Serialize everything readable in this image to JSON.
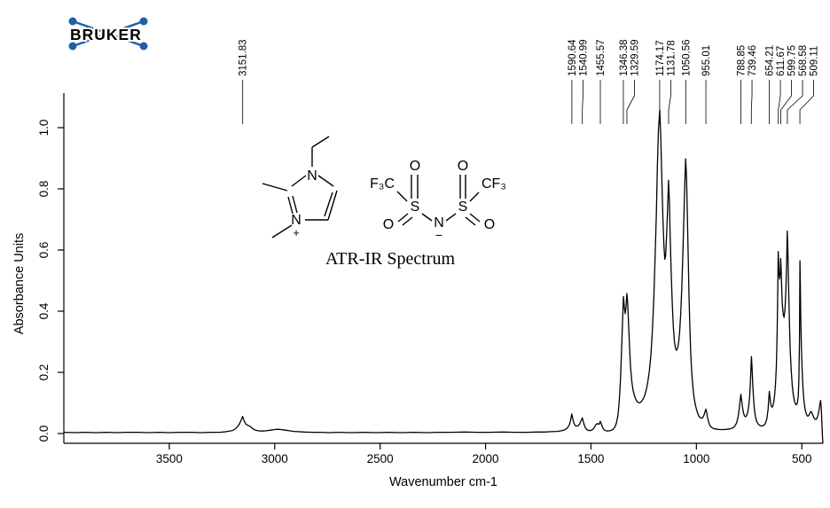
{
  "logo": {
    "text": "BRUKER",
    "color": "#1E5FA8"
  },
  "molecule": {
    "n": "N",
    "plus": "+",
    "s": "S",
    "o": "O",
    "minus": "−",
    "f3c": "F₃C",
    "cf3": "CF₃"
  },
  "chart_data": {
    "type": "line",
    "title": "ATR-IR Spectrum",
    "xlabel": "Wavenumber cm-1",
    "ylabel": "Absorbance Units",
    "x_axis_reversed": true,
    "xlim": [
      4000,
      400
    ],
    "ylim": [
      -0.05,
      1.11
    ],
    "grid": false,
    "line_color": "#000000",
    "x_ticks": [
      3500,
      3000,
      2500,
      2000,
      1500,
      1000,
      500
    ],
    "y_ticks": [
      "0.0",
      "0.2",
      "0.4",
      "0.6",
      "0.8",
      "1.0"
    ],
    "peak_labels": [
      "3151.83",
      "1590.64",
      "1540.99",
      "1455.57",
      "1346.38",
      "1329.59",
      "1174.17",
      "1131.78",
      "1050.56",
      "955.01",
      "788.85",
      "739.46",
      "654.21",
      "611.67",
      "599.75",
      "568.58",
      "509.11"
    ],
    "spectrum_points": [
      [
        4000,
        0.004
      ],
      [
        3950,
        0.003
      ],
      [
        3900,
        0.004
      ],
      [
        3850,
        0.003
      ],
      [
        3800,
        0.004
      ],
      [
        3750,
        0.003
      ],
      [
        3700,
        0.004
      ],
      [
        3650,
        0.004
      ],
      [
        3600,
        0.003
      ],
      [
        3550,
        0.004
      ],
      [
        3500,
        0.003
      ],
      [
        3450,
        0.004
      ],
      [
        3400,
        0.004
      ],
      [
        3350,
        0.003
      ],
      [
        3300,
        0.004
      ],
      [
        3260,
        0.004
      ],
      [
        3230,
        0.006
      ],
      [
        3200,
        0.01
      ],
      [
        3185,
        0.016
      ],
      [
        3170,
        0.028
      ],
      [
        3160,
        0.042
      ],
      [
        3152,
        0.056
      ],
      [
        3144,
        0.04
      ],
      [
        3136,
        0.03
      ],
      [
        3128,
        0.027
      ],
      [
        3118,
        0.024
      ],
      [
        3108,
        0.018
      ],
      [
        3095,
        0.012
      ],
      [
        3080,
        0.009
      ],
      [
        3060,
        0.008
      ],
      [
        3040,
        0.009
      ],
      [
        3020,
        0.011
      ],
      [
        3000,
        0.013
      ],
      [
        2985,
        0.014
      ],
      [
        2970,
        0.013
      ],
      [
        2950,
        0.011
      ],
      [
        2930,
        0.009
      ],
      [
        2910,
        0.007
      ],
      [
        2890,
        0.006
      ],
      [
        2860,
        0.005
      ],
      [
        2820,
        0.004
      ],
      [
        2780,
        0.004
      ],
      [
        2740,
        0.003
      ],
      [
        2700,
        0.004
      ],
      [
        2640,
        0.003
      ],
      [
        2580,
        0.004
      ],
      [
        2520,
        0.003
      ],
      [
        2460,
        0.004
      ],
      [
        2400,
        0.003
      ],
      [
        2340,
        0.004
      ],
      [
        2280,
        0.003
      ],
      [
        2220,
        0.004
      ],
      [
        2160,
        0.004
      ],
      [
        2100,
        0.005
      ],
      [
        2040,
        0.004
      ],
      [
        1980,
        0.004
      ],
      [
        1920,
        0.005
      ],
      [
        1860,
        0.004
      ],
      [
        1800,
        0.004
      ],
      [
        1760,
        0.005
      ],
      [
        1720,
        0.005
      ],
      [
        1690,
        0.006
      ],
      [
        1660,
        0.007
      ],
      [
        1640,
        0.009
      ],
      [
        1625,
        0.012
      ],
      [
        1612,
        0.018
      ],
      [
        1603,
        0.028
      ],
      [
        1597,
        0.042
      ],
      [
        1591,
        0.064
      ],
      [
        1586,
        0.048
      ],
      [
        1581,
        0.034
      ],
      [
        1575,
        0.026
      ],
      [
        1568,
        0.024
      ],
      [
        1560,
        0.026
      ],
      [
        1553,
        0.032
      ],
      [
        1547,
        0.042
      ],
      [
        1541,
        0.051
      ],
      [
        1536,
        0.038
      ],
      [
        1531,
        0.026
      ],
      [
        1525,
        0.017
      ],
      [
        1518,
        0.012
      ],
      [
        1510,
        0.01
      ],
      [
        1502,
        0.01
      ],
      [
        1495,
        0.012
      ],
      [
        1488,
        0.016
      ],
      [
        1481,
        0.024
      ],
      [
        1475,
        0.03
      ],
      [
        1469,
        0.033
      ],
      [
        1464,
        0.03
      ],
      [
        1460,
        0.032
      ],
      [
        1456,
        0.04
      ],
      [
        1451,
        0.032
      ],
      [
        1446,
        0.022
      ],
      [
        1441,
        0.015
      ],
      [
        1435,
        0.011
      ],
      [
        1428,
        0.009
      ],
      [
        1421,
        0.008
      ],
      [
        1414,
        0.009
      ],
      [
        1407,
        0.01
      ],
      [
        1400,
        0.012
      ],
      [
        1393,
        0.015
      ],
      [
        1386,
        0.022
      ],
      [
        1379,
        0.035
      ],
      [
        1372,
        0.06
      ],
      [
        1366,
        0.105
      ],
      [
        1360,
        0.175
      ],
      [
        1355,
        0.27
      ],
      [
        1350,
        0.37
      ],
      [
        1346,
        0.448
      ],
      [
        1342,
        0.415
      ],
      [
        1338,
        0.392
      ],
      [
        1334,
        0.412
      ],
      [
        1330,
        0.458
      ],
      [
        1326,
        0.43
      ],
      [
        1322,
        0.36
      ],
      [
        1317,
        0.28
      ],
      [
        1312,
        0.215
      ],
      [
        1306,
        0.168
      ],
      [
        1300,
        0.14
      ],
      [
        1293,
        0.122
      ],
      [
        1286,
        0.11
      ],
      [
        1279,
        0.103
      ],
      [
        1272,
        0.1
      ],
      [
        1265,
        0.102
      ],
      [
        1258,
        0.107
      ],
      [
        1251,
        0.115
      ],
      [
        1244,
        0.127
      ],
      [
        1237,
        0.145
      ],
      [
        1230,
        0.17
      ],
      [
        1223,
        0.205
      ],
      [
        1216,
        0.255
      ],
      [
        1209,
        0.33
      ],
      [
        1202,
        0.44
      ],
      [
        1196,
        0.57
      ],
      [
        1190,
        0.72
      ],
      [
        1185,
        0.87
      ],
      [
        1180,
        0.99
      ],
      [
        1174,
        1.058
      ],
      [
        1169,
        0.975
      ],
      [
        1164,
        0.84
      ],
      [
        1159,
        0.71
      ],
      [
        1154,
        0.615
      ],
      [
        1150,
        0.57
      ],
      [
        1146,
        0.58
      ],
      [
        1142,
        0.64
      ],
      [
        1137,
        0.73
      ],
      [
        1132,
        0.828
      ],
      [
        1128,
        0.76
      ],
      [
        1124,
        0.64
      ],
      [
        1119,
        0.52
      ],
      [
        1114,
        0.42
      ],
      [
        1109,
        0.345
      ],
      [
        1104,
        0.3
      ],
      [
        1099,
        0.278
      ],
      [
        1094,
        0.272
      ],
      [
        1089,
        0.28
      ],
      [
        1084,
        0.3
      ],
      [
        1079,
        0.335
      ],
      [
        1074,
        0.395
      ],
      [
        1069,
        0.48
      ],
      [
        1064,
        0.59
      ],
      [
        1059,
        0.715
      ],
      [
        1055,
        0.82
      ],
      [
        1051,
        0.898
      ],
      [
        1047,
        0.84
      ],
      [
        1043,
        0.72
      ],
      [
        1039,
        0.58
      ],
      [
        1035,
        0.45
      ],
      [
        1031,
        0.345
      ],
      [
        1027,
        0.265
      ],
      [
        1022,
        0.2
      ],
      [
        1017,
        0.155
      ],
      [
        1012,
        0.122
      ],
      [
        1006,
        0.098
      ],
      [
        1000,
        0.08
      ],
      [
        994,
        0.066
      ],
      [
        988,
        0.057
      ],
      [
        982,
        0.052
      ],
      [
        976,
        0.05
      ],
      [
        970,
        0.052
      ],
      [
        964,
        0.06
      ],
      [
        959,
        0.072
      ],
      [
        955,
        0.08
      ],
      [
        951,
        0.068
      ],
      [
        947,
        0.052
      ],
      [
        942,
        0.038
      ],
      [
        937,
        0.028
      ],
      [
        931,
        0.022
      ],
      [
        925,
        0.019
      ],
      [
        918,
        0.016
      ],
      [
        910,
        0.015
      ],
      [
        900,
        0.014
      ],
      [
        890,
        0.013
      ],
      [
        878,
        0.013
      ],
      [
        866,
        0.013
      ],
      [
        854,
        0.014
      ],
      [
        842,
        0.015
      ],
      [
        832,
        0.017
      ],
      [
        824,
        0.02
      ],
      [
        816,
        0.026
      ],
      [
        809,
        0.035
      ],
      [
        803,
        0.052
      ],
      [
        797,
        0.08
      ],
      [
        792,
        0.112
      ],
      [
        789,
        0.128
      ],
      [
        786,
        0.112
      ],
      [
        782,
        0.088
      ],
      [
        777,
        0.068
      ],
      [
        772,
        0.058
      ],
      [
        767,
        0.055
      ],
      [
        762,
        0.058
      ],
      [
        757,
        0.068
      ],
      [
        752,
        0.088
      ],
      [
        747,
        0.125
      ],
      [
        743,
        0.18
      ],
      [
        739,
        0.252
      ],
      [
        736,
        0.215
      ],
      [
        733,
        0.165
      ],
      [
        729,
        0.115
      ],
      [
        725,
        0.08
      ],
      [
        720,
        0.056
      ],
      [
        714,
        0.04
      ],
      [
        708,
        0.032
      ],
      [
        701,
        0.027
      ],
      [
        694,
        0.025
      ],
      [
        687,
        0.025
      ],
      [
        680,
        0.027
      ],
      [
        673,
        0.033
      ],
      [
        666,
        0.048
      ],
      [
        660,
        0.08
      ],
      [
        656,
        0.12
      ],
      [
        654,
        0.138
      ],
      [
        651,
        0.118
      ],
      [
        648,
        0.1
      ],
      [
        645,
        0.09
      ],
      [
        641,
        0.086
      ],
      [
        637,
        0.09
      ],
      [
        633,
        0.103
      ],
      [
        629,
        0.125
      ],
      [
        625,
        0.16
      ],
      [
        621,
        0.22
      ],
      [
        617,
        0.33
      ],
      [
        614,
        0.47
      ],
      [
        612,
        0.595
      ],
      [
        610,
        0.56
      ],
      [
        608,
        0.525
      ],
      [
        605,
        0.505
      ],
      [
        602,
        0.53
      ],
      [
        600,
        0.572
      ],
      [
        598,
        0.54
      ],
      [
        595,
        0.47
      ],
      [
        592,
        0.42
      ],
      [
        588,
        0.388
      ],
      [
        584,
        0.38
      ],
      [
        580,
        0.405
      ],
      [
        576,
        0.465
      ],
      [
        572,
        0.56
      ],
      [
        569,
        0.662
      ],
      [
        566,
        0.6
      ],
      [
        563,
        0.49
      ],
      [
        559,
        0.37
      ],
      [
        555,
        0.275
      ],
      [
        550,
        0.205
      ],
      [
        545,
        0.155
      ],
      [
        540,
        0.125
      ],
      [
        535,
        0.106
      ],
      [
        530,
        0.096
      ],
      [
        525,
        0.094
      ],
      [
        521,
        0.1
      ],
      [
        517,
        0.122
      ],
      [
        514,
        0.175
      ],
      [
        511,
        0.31
      ],
      [
        509,
        0.565
      ],
      [
        507,
        0.48
      ],
      [
        505,
        0.38
      ],
      [
        502,
        0.285
      ],
      [
        499,
        0.215
      ],
      [
        495,
        0.155
      ],
      [
        491,
        0.115
      ],
      [
        487,
        0.09
      ],
      [
        483,
        0.074
      ],
      [
        478,
        0.062
      ],
      [
        473,
        0.057
      ],
      [
        468,
        0.058
      ],
      [
        463,
        0.064
      ],
      [
        458,
        0.072
      ],
      [
        453,
        0.07
      ],
      [
        448,
        0.06
      ],
      [
        443,
        0.052
      ],
      [
        438,
        0.047
      ],
      [
        433,
        0.046
      ],
      [
        428,
        0.05
      ],
      [
        423,
        0.06
      ],
      [
        418,
        0.078
      ],
      [
        414,
        0.098
      ],
      [
        411,
        0.108
      ],
      [
        408,
        0.085
      ],
      [
        405,
        0.04
      ],
      [
        402,
        -0.01
      ],
      [
        400,
        -0.032
      ]
    ]
  }
}
